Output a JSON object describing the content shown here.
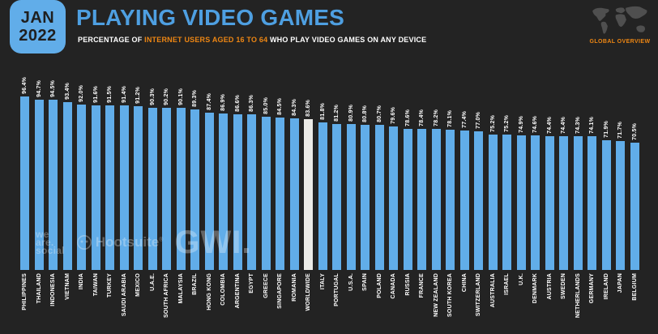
{
  "badge": {
    "month": "JAN",
    "year": "2022"
  },
  "header": {
    "title": "PLAYING VIDEO GAMES",
    "subtitle_prefix": "PERCENTAGE OF ",
    "subtitle_highlight": "INTERNET USERS AGED 16 TO 64",
    "subtitle_suffix": " WHO PLAY VIDEO GAMES ON ANY DEVICE",
    "overview_label": "GLOBAL OVERVIEW"
  },
  "watermarks": {
    "brand1_lines": [
      "we",
      "are.",
      "social"
    ],
    "brand2": "Hootsuite",
    "brand2_mark": "®",
    "brand3": "GWI."
  },
  "colors": {
    "background": "#232323",
    "bar": "#61ADE9",
    "bar_highlight": "#ECEBE7",
    "title": "#4E9FE1",
    "accent_orange": "#ED8613",
    "label_text": "#FFFFFF",
    "map": "#4F4F4F"
  },
  "chart_data": {
    "type": "bar",
    "title": "Playing Video Games",
    "subtitle": "Percentage of internet users aged 16 to 64 who play video games on any device",
    "unit": "%",
    "ylim": [
      0,
      100
    ],
    "grid": false,
    "legend": "none",
    "highlight_category": "WORLDWIDE",
    "categories": [
      "PHILIPPINES",
      "THAILAND",
      "INDONESIA",
      "VIETNAM",
      "INDIA",
      "TAIWAN",
      "TURKEY",
      "SAUDI ARABIA",
      "MEXICO",
      "U.A.E.",
      "SOUTH AFRICA",
      "MALAYSIA",
      "BRAZIL",
      "HONG KONG",
      "COLOMBIA",
      "ARGENTINA",
      "EGYPT",
      "GREECE",
      "SINGAPORE",
      "ROMANIA",
      "WORLDWIDE",
      "ITALY",
      "PORTUGAL",
      "U.S.A.",
      "SPAIN",
      "POLAND",
      "CANADA",
      "RUSSIA",
      "FRANCE",
      "NEW ZEALAND",
      "SOUTH KOREA",
      "CHINA",
      "SWITZERLAND",
      "AUSTRALIA",
      "ISRAEL",
      "U.K.",
      "DENMARK",
      "AUSTRIA",
      "SWEDEN",
      "NETHERLANDS",
      "GERMANY",
      "IRELAND",
      "JAPAN",
      "BELGIUM"
    ],
    "values": [
      96.4,
      94.7,
      94.5,
      93.4,
      92.0,
      91.6,
      91.5,
      91.4,
      91.2,
      90.3,
      90.2,
      90.1,
      89.3,
      87.4,
      86.9,
      86.6,
      86.3,
      85.0,
      84.5,
      84.3,
      83.6,
      81.8,
      81.2,
      80.9,
      80.8,
      80.7,
      79.6,
      78.6,
      78.4,
      78.2,
      78.1,
      77.4,
      77.0,
      75.2,
      75.2,
      74.9,
      74.6,
      74.4,
      74.4,
      74.3,
      74.1,
      71.9,
      71.7,
      70.5
    ]
  }
}
